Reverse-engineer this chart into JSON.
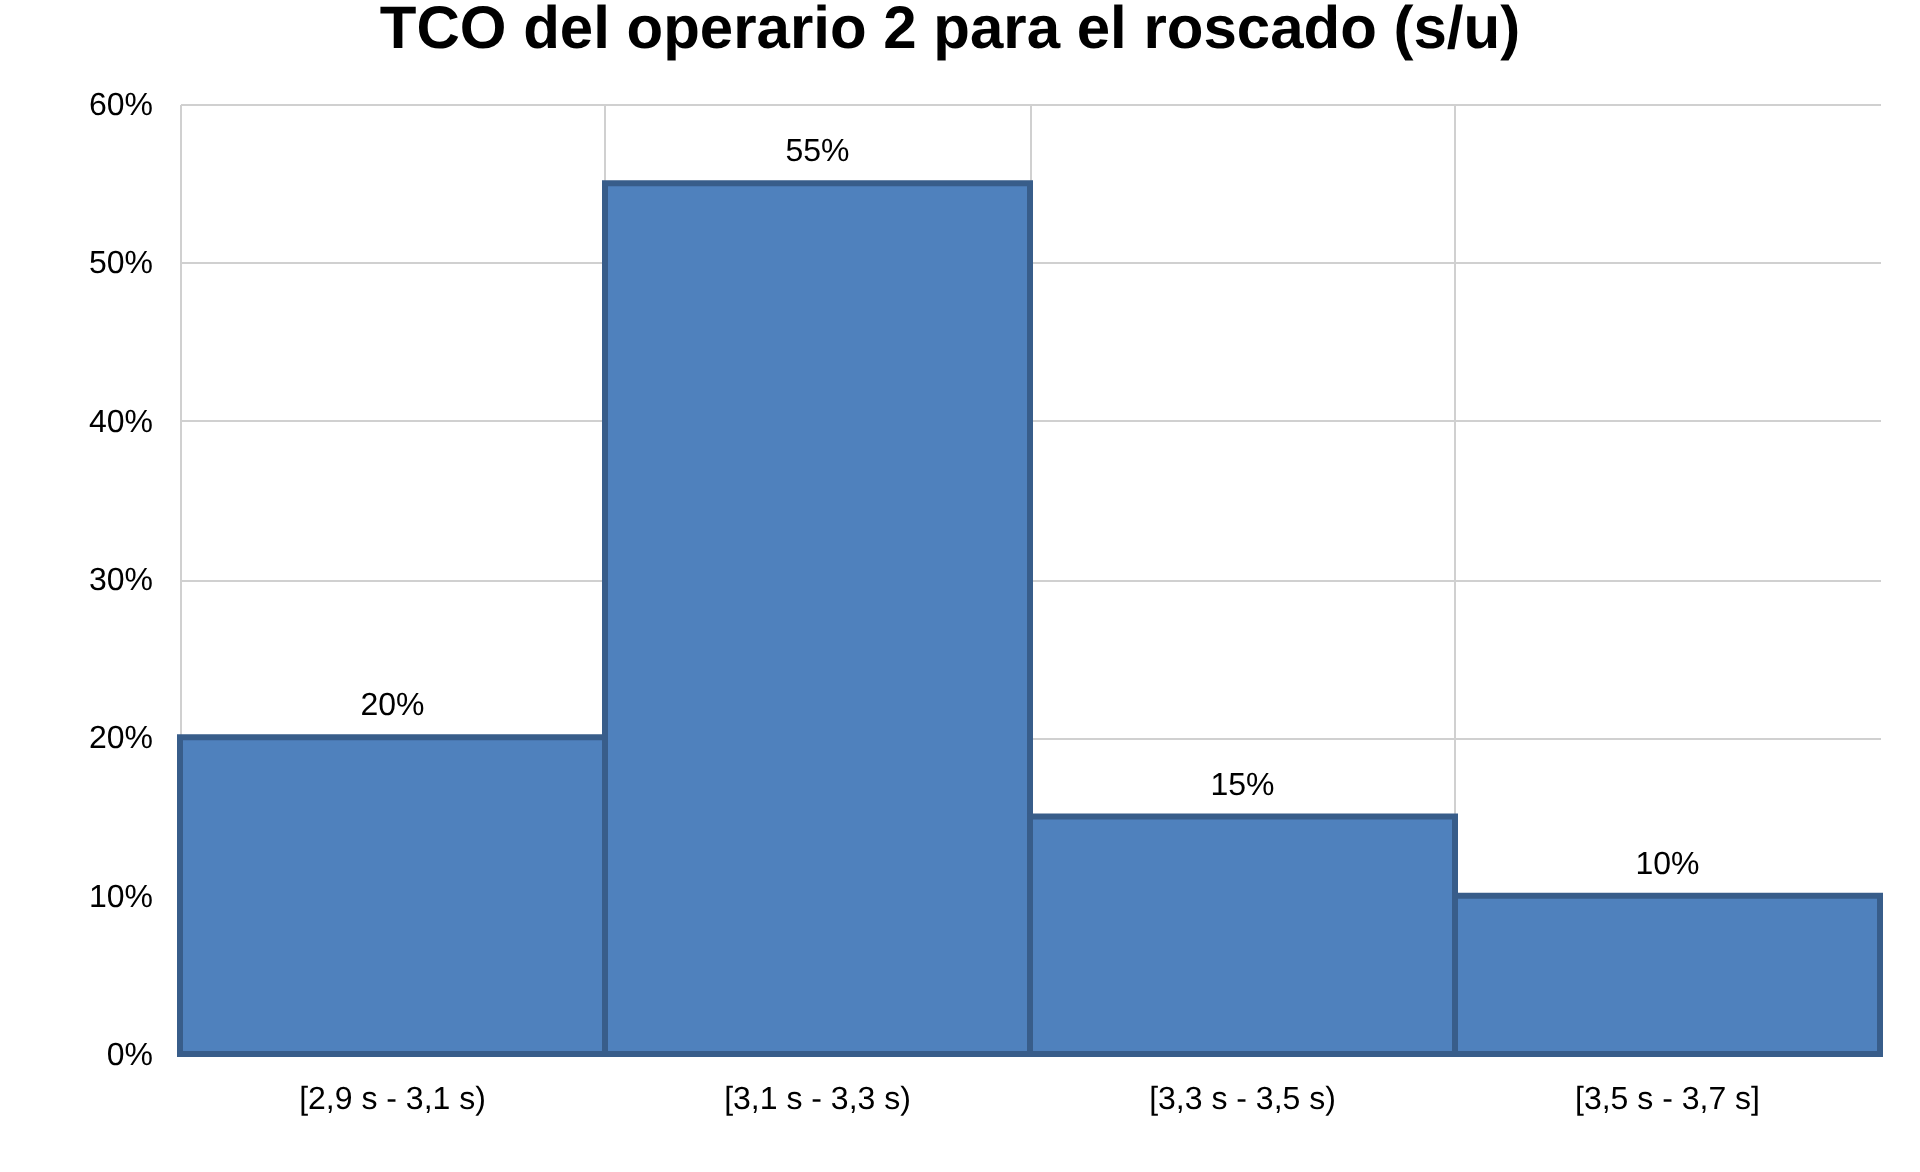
{
  "chart_data": {
    "type": "bar",
    "title": "TCO del operario 2 para el roscado (s/u)",
    "categories": [
      "[2,9 s - 3,1 s)",
      "[3,1 s - 3,3 s)",
      "[3,3 s - 3,5 s)",
      "[3,5 s - 3,7 s]"
    ],
    "values": [
      20,
      55,
      15,
      10
    ],
    "value_labels": [
      "20%",
      "55%",
      "15%",
      "10%"
    ],
    "color": "#4f81bd",
    "ylim": [
      0,
      60
    ],
    "yticks": [
      {
        "value": 0,
        "label": "0%"
      },
      {
        "value": 10,
        "label": "10%"
      },
      {
        "value": 20,
        "label": "20%"
      },
      {
        "value": 30,
        "label": "30%"
      },
      {
        "value": 40,
        "label": "40%"
      },
      {
        "value": 50,
        "label": "50%"
      },
      {
        "value": 60,
        "label": "60%"
      }
    ],
    "grid": true
  }
}
